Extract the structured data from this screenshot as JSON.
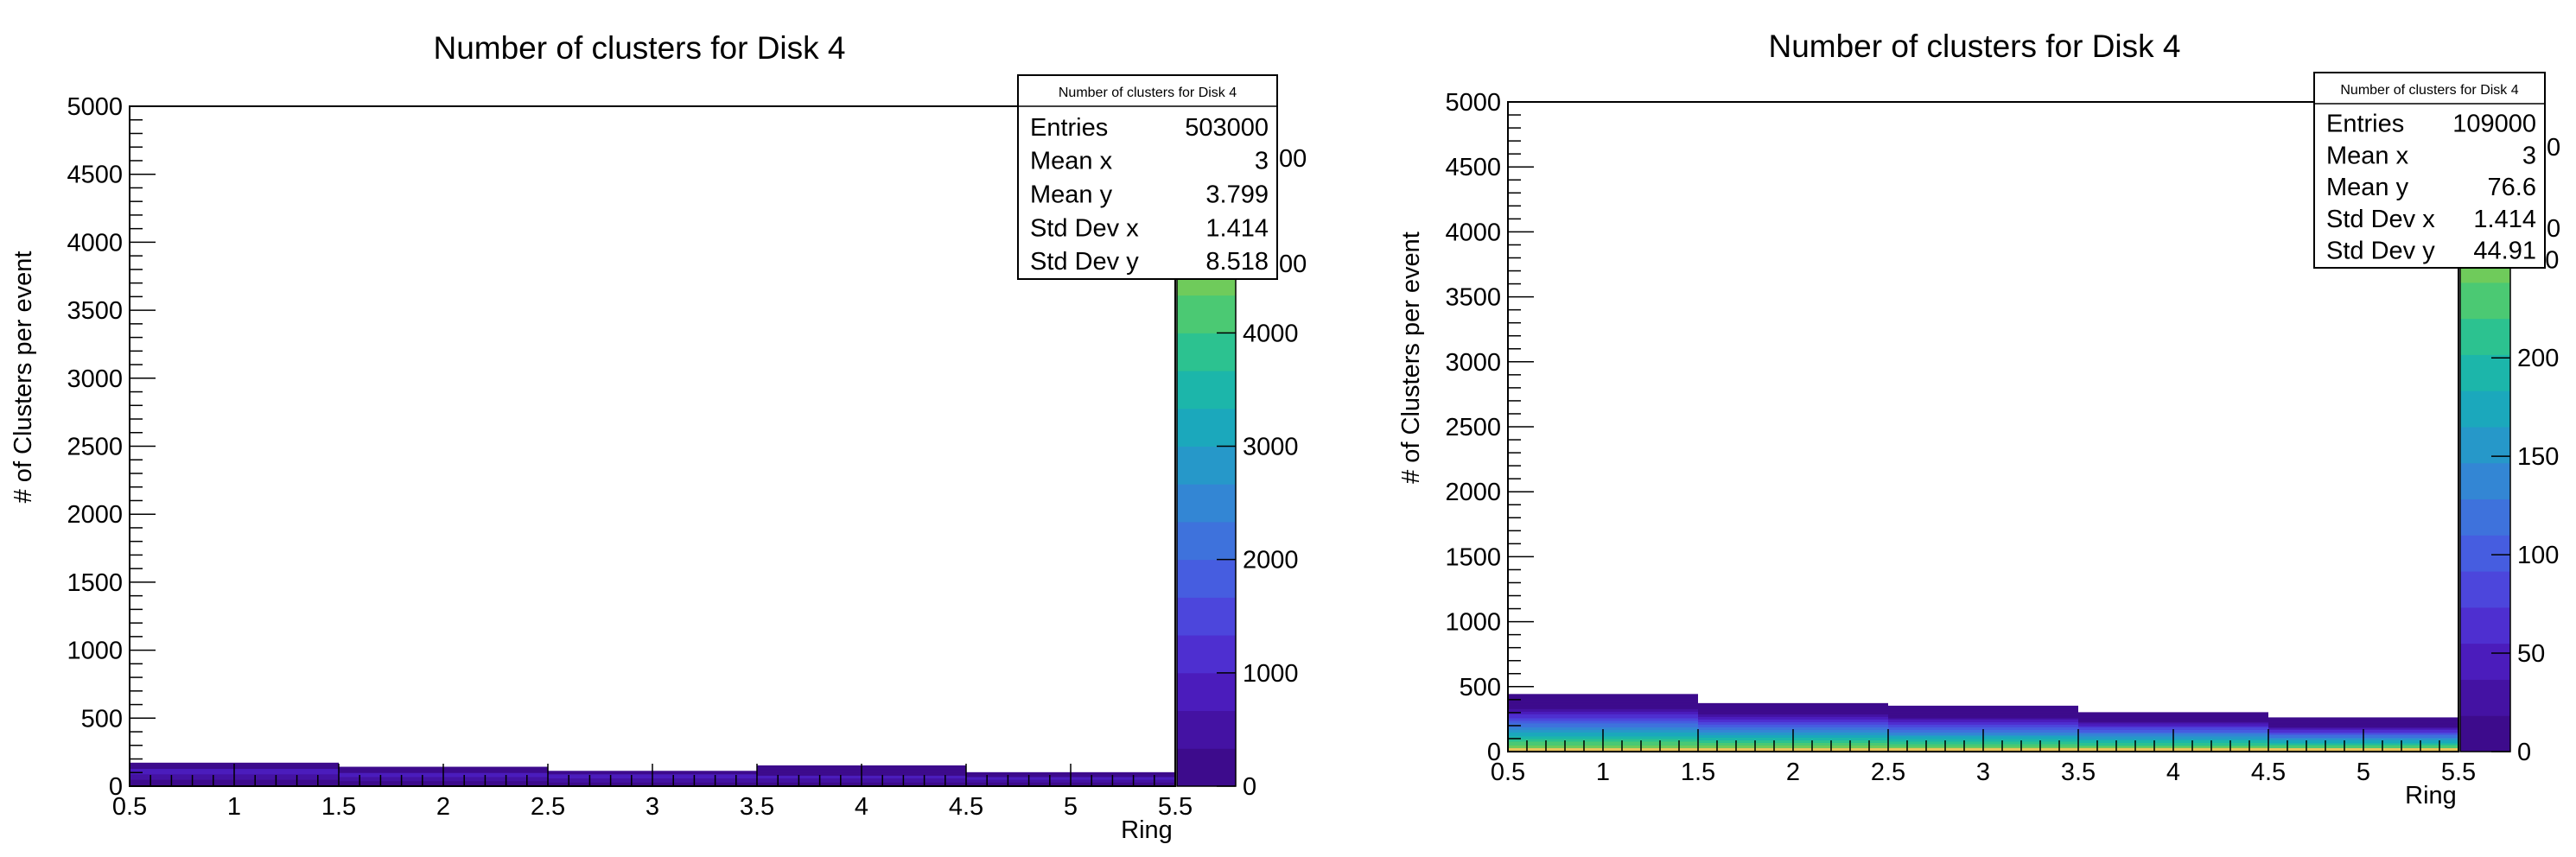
{
  "palette": {
    "background": "#ffffff",
    "frame": "#000000",
    "viridis": [
      "#3d0b8c",
      "#4412a3",
      "#4b1cbc",
      "#4e2fd0",
      "#4c46dc",
      "#465de0",
      "#3e72dc",
      "#3386d4",
      "#2698c9",
      "#1ba8bc",
      "#1cb6aa",
      "#2cc290",
      "#4bc973",
      "#6fcb5b",
      "#94c94c",
      "#b4c548",
      "#cfc34e",
      "#e6c45a"
    ]
  },
  "chart_data": [
    {
      "type": "heatmap",
      "title": "Number of clusters for Disk 4",
      "xlabel": "Ring",
      "ylabel": "# of Clusters per event",
      "xlim": [
        0.5,
        5.5
      ],
      "ylim": [
        0,
        5000
      ],
      "x_ticks": [
        "0.5",
        "1",
        "1.5",
        "2",
        "2.5",
        "3",
        "3.5",
        "4",
        "4.5",
        "5",
        "5.5"
      ],
      "y_ticks": [
        "0",
        "500",
        "1000",
        "1500",
        "2000",
        "2500",
        "3000",
        "3500",
        "4000",
        "4500",
        "5000"
      ],
      "colorbar": {
        "zmin": 0,
        "zmax": 6000,
        "ticks": [
          "0",
          "1000",
          "2000",
          "3000",
          "4000"
        ],
        "partial_ticks": [
          "00",
          "00"
        ]
      },
      "rings": [
        1,
        2,
        3,
        4,
        5
      ],
      "ring_max_y": [
        160,
        130,
        100,
        140,
        90
      ],
      "ring_dense_y": [
        130,
        100,
        90,
        80,
        70
      ],
      "stats": {
        "header": "Number of clusters for Disk 4",
        "rows": [
          {
            "label": "Entries",
            "value": "503000"
          },
          {
            "label": "Mean x",
            "value": "3"
          },
          {
            "label": "Mean y",
            "value": "3.799"
          },
          {
            "label": "Std Dev x",
            "value": "1.414"
          },
          {
            "label": "Std Dev y",
            "value": "8.518"
          }
        ]
      }
    },
    {
      "type": "heatmap",
      "title": "Number of clusters for Disk 4",
      "xlabel": "Ring",
      "ylabel": "# of Clusters per event",
      "xlim": [
        0.5,
        5.5
      ],
      "ylim": [
        0,
        5000
      ],
      "x_ticks": [
        "0.5",
        "1",
        "1.5",
        "2",
        "2.5",
        "3",
        "3.5",
        "4",
        "4.5",
        "5",
        "5.5"
      ],
      "y_ticks": [
        "0",
        "500",
        "1000",
        "1500",
        "2000",
        "2500",
        "3000",
        "3500",
        "4000",
        "4500",
        "5000"
      ],
      "colorbar": {
        "zmin": 0,
        "zmax": 330,
        "ticks": [
          "0",
          "50",
          "100",
          "150",
          "200",
          "250"
        ],
        "partial_ticks": [
          "0",
          "0"
        ]
      },
      "rings": [
        1,
        2,
        3,
        4,
        5
      ],
      "ring_max_y": [
        430,
        360,
        340,
        290,
        250
      ],
      "ring_dense_y": [
        330,
        290,
        260,
        230,
        190
      ],
      "stats": {
        "header": "Number of clusters for Disk 4",
        "rows": [
          {
            "label": "Entries",
            "value": "109000"
          },
          {
            "label": "Mean x",
            "value": "3"
          },
          {
            "label": "Mean y",
            "value": "76.6"
          },
          {
            "label": "Std Dev x",
            "value": "1.414"
          },
          {
            "label": "Std Dev y",
            "value": "44.91"
          }
        ]
      }
    }
  ]
}
